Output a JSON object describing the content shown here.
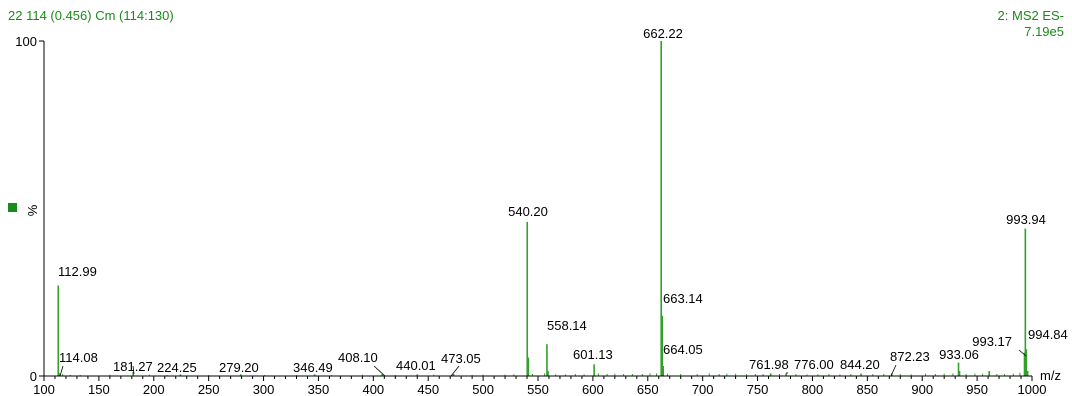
{
  "header": {
    "left": "22 114 (0.456) Cm (114:130)",
    "right_line1": "2: MS2 ES-",
    "right_line2": "7.19e5"
  },
  "colors": {
    "peak": "#33a02c",
    "header_text": "#1a8a1a",
    "axis": "#000000"
  },
  "chart_data": {
    "type": "bar",
    "title": "22 114 (0.456) Cm (114:130)",
    "xlabel": "m/z",
    "ylabel": "%",
    "xlim": [
      100,
      1000
    ],
    "ylim": [
      0,
      100
    ],
    "x_ticks": [
      100,
      150,
      200,
      250,
      300,
      350,
      400,
      450,
      500,
      550,
      600,
      650,
      700,
      750,
      800,
      850,
      900,
      950,
      1000
    ],
    "y_ticks": [
      0,
      100
    ],
    "peaks": [
      {
        "mz": 112.99,
        "intensity": 27.0,
        "label": "112.99"
      },
      {
        "mz": 114.08,
        "intensity": 0.8,
        "label": "114.08"
      },
      {
        "mz": 181.27,
        "intensity": 1.2,
        "label": "181.27"
      },
      {
        "mz": 224.25,
        "intensity": 0.5,
        "label": "224.25"
      },
      {
        "mz": 279.2,
        "intensity": 0.5,
        "label": "279.20"
      },
      {
        "mz": 346.49,
        "intensity": 0.5,
        "label": "346.49"
      },
      {
        "mz": 408.1,
        "intensity": 0.6,
        "label": "408.10"
      },
      {
        "mz": 440.01,
        "intensity": 0.5,
        "label": "440.01"
      },
      {
        "mz": 473.05,
        "intensity": 0.6,
        "label": "473.05"
      },
      {
        "mz": 540.2,
        "intensity": 46.0,
        "label": "540.20"
      },
      {
        "mz": 541.2,
        "intensity": 5.5,
        "label": ""
      },
      {
        "mz": 558.14,
        "intensity": 9.5,
        "label": "558.14"
      },
      {
        "mz": 559.1,
        "intensity": 1.5,
        "label": ""
      },
      {
        "mz": 601.13,
        "intensity": 3.5,
        "label": "601.13"
      },
      {
        "mz": 662.22,
        "intensity": 100.0,
        "label": "662.22"
      },
      {
        "mz": 663.14,
        "intensity": 18.0,
        "label": "663.14"
      },
      {
        "mz": 664.05,
        "intensity": 3.0,
        "label": "664.05"
      },
      {
        "mz": 761.98,
        "intensity": 0.8,
        "label": "761.98"
      },
      {
        "mz": 776.0,
        "intensity": 0.8,
        "label": "776.00"
      },
      {
        "mz": 844.2,
        "intensity": 0.7,
        "label": "844.20"
      },
      {
        "mz": 872.23,
        "intensity": 0.8,
        "label": "872.23"
      },
      {
        "mz": 933.06,
        "intensity": 4.0,
        "label": "933.06"
      },
      {
        "mz": 934.0,
        "intensity": 1.5,
        "label": ""
      },
      {
        "mz": 961.0,
        "intensity": 1.5,
        "label": ""
      },
      {
        "mz": 993.17,
        "intensity": 7.0,
        "label": "993.17"
      },
      {
        "mz": 993.94,
        "intensity": 44.0,
        "label": "993.94"
      },
      {
        "mz": 994.84,
        "intensity": 8.0,
        "label": "994.84"
      },
      {
        "mz": 996.0,
        "intensity": 1.5,
        "label": ""
      }
    ],
    "minor_peaks": [
      [
        117,
        0.6
      ],
      [
        124,
        0.3
      ],
      [
        133,
        0.3
      ],
      [
        160,
        0.4
      ],
      [
        181.27,
        1.2
      ],
      [
        196,
        0.4
      ],
      [
        212,
        0.3
      ],
      [
        250,
        0.3
      ],
      [
        301,
        0.3
      ],
      [
        330,
        0.3
      ],
      [
        362,
        0.3
      ],
      [
        390,
        0.4
      ],
      [
        420,
        0.3
      ],
      [
        455,
        0.4
      ],
      [
        490,
        0.3
      ],
      [
        500,
        0.4
      ],
      [
        520,
        0.4
      ],
      [
        528,
        0.5
      ],
      [
        545,
        0.6
      ],
      [
        556,
        0.8
      ],
      [
        566,
        0.5
      ],
      [
        575,
        0.5
      ],
      [
        584,
        0.6
      ],
      [
        592,
        0.5
      ],
      [
        605,
        0.8
      ],
      [
        613,
        0.6
      ],
      [
        620,
        0.7
      ],
      [
        628,
        0.6
      ],
      [
        636,
        0.6
      ],
      [
        645,
        0.6
      ],
      [
        652,
        0.8
      ],
      [
        658,
        0.8
      ],
      [
        668,
        0.7
      ],
      [
        680,
        0.6
      ],
      [
        695,
        0.6
      ],
      [
        706,
        0.8
      ],
      [
        715,
        0.6
      ],
      [
        722,
        0.7
      ],
      [
        730,
        0.7
      ],
      [
        740,
        0.6
      ],
      [
        748,
        0.6
      ],
      [
        755,
        0.6
      ],
      [
        770,
        0.6
      ],
      [
        785,
        0.6
      ],
      [
        795,
        0.5
      ],
      [
        805,
        0.5
      ],
      [
        815,
        0.6
      ],
      [
        825,
        0.5
      ],
      [
        835,
        0.6
      ],
      [
        855,
        0.6
      ],
      [
        865,
        0.6
      ],
      [
        880,
        0.6
      ],
      [
        890,
        0.5
      ],
      [
        903,
        0.7
      ],
      [
        912,
        0.6
      ],
      [
        920,
        0.7
      ],
      [
        928,
        0.8
      ],
      [
        940,
        0.6
      ],
      [
        948,
        0.7
      ],
      [
        955,
        0.7
      ],
      [
        968,
        0.6
      ],
      [
        975,
        0.6
      ],
      [
        983,
        0.7
      ],
      [
        989,
        1.0
      ]
    ]
  }
}
